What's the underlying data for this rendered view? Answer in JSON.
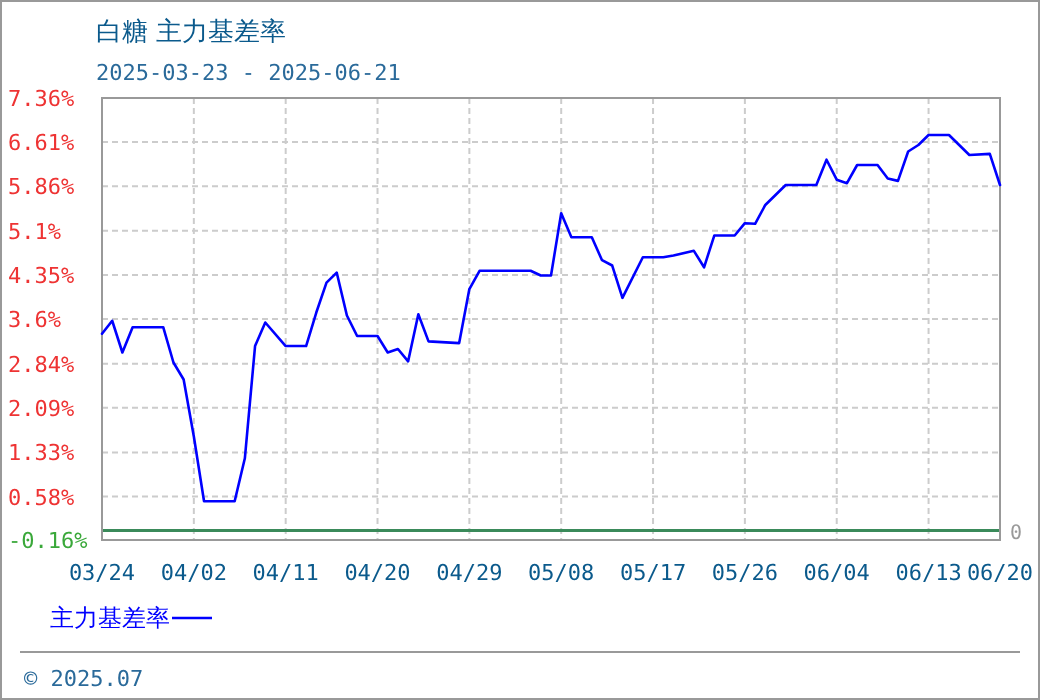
{
  "chart_data": {
    "type": "line",
    "title": "白糖 主力基差率",
    "subtitle": "2025-03-23 - 2025-06-21",
    "x": [
      "2025-03-24",
      "2025-03-25",
      "2025-03-26",
      "2025-03-27",
      "2025-03-30",
      "2025-03-31",
      "2025-04-01",
      "2025-04-02",
      "2025-04-03",
      "2025-04-06",
      "2025-04-07",
      "2025-04-08",
      "2025-04-09",
      "2025-04-11",
      "2025-04-13",
      "2025-04-14",
      "2025-04-15",
      "2025-04-16",
      "2025-04-17",
      "2025-04-18",
      "2025-04-20",
      "2025-04-21",
      "2025-04-22",
      "2025-04-23",
      "2025-04-24",
      "2025-04-25",
      "2025-04-28",
      "2025-04-29",
      "2025-04-30",
      "2025-05-05",
      "2025-05-06",
      "2025-05-07",
      "2025-05-08",
      "2025-05-09",
      "2025-05-11",
      "2025-05-12",
      "2025-05-13",
      "2025-05-14",
      "2025-05-16",
      "2025-05-18",
      "2025-05-19",
      "2025-05-21",
      "2025-05-22",
      "2025-05-23",
      "2025-05-25",
      "2025-05-26",
      "2025-05-27",
      "2025-05-28",
      "2025-05-30",
      "2025-06-02",
      "2025-06-03",
      "2025-06-04",
      "2025-06-05",
      "2025-06-06",
      "2025-06-08",
      "2025-06-09",
      "2025-06-10",
      "2025-06-11",
      "2025-06-12",
      "2025-06-13",
      "2025-06-15",
      "2025-06-17",
      "2025-06-19",
      "2025-06-20"
    ],
    "series": [
      {
        "name": "主力基差率",
        "color": "#0000ff",
        "values": [
          3.35,
          3.57,
          3.03,
          3.46,
          3.46,
          2.86,
          2.57,
          1.6,
          0.5,
          0.5,
          1.23,
          3.14,
          3.54,
          3.14,
          3.14,
          3.71,
          4.22,
          4.39,
          3.66,
          3.31,
          3.31,
          3.03,
          3.09,
          2.88,
          3.68,
          3.22,
          3.19,
          4.11,
          4.42,
          4.42,
          4.34,
          4.34,
          5.4,
          4.99,
          4.99,
          4.6,
          4.51,
          3.96,
          4.65,
          4.65,
          4.68,
          4.76,
          4.48,
          5.02,
          5.02,
          5.23,
          5.22,
          5.54,
          5.88,
          5.88,
          6.31,
          5.97,
          5.91,
          6.22,
          6.22,
          5.99,
          5.95,
          6.45,
          6.56,
          6.73,
          6.73,
          6.39,
          6.41,
          5.88
        ]
      }
    ],
    "xlim": [
      "2025-03-24",
      "2025-06-20"
    ],
    "xticks": [
      {
        "value": "2025-03-24",
        "label": "03/24"
      },
      {
        "value": "2025-04-02",
        "label": "04/02"
      },
      {
        "value": "2025-04-11",
        "label": "04/11"
      },
      {
        "value": "2025-04-20",
        "label": "04/20"
      },
      {
        "value": "2025-04-29",
        "label": "04/29"
      },
      {
        "value": "2025-05-08",
        "label": "05/08"
      },
      {
        "value": "2025-05-17",
        "label": "05/17"
      },
      {
        "value": "2025-05-26",
        "label": "05/26"
      },
      {
        "value": "2025-06-04",
        "label": "06/04"
      },
      {
        "value": "2025-06-13",
        "label": "06/13"
      },
      {
        "value": "2025-06-20",
        "label": "06/20"
      }
    ],
    "ylim": [
      -0.16,
      7.36
    ],
    "yticks": [
      {
        "value": -0.16,
        "label": "-0.16%"
      },
      {
        "value": 0.58,
        "label": "0.58%"
      },
      {
        "value": 1.33,
        "label": "1.33%"
      },
      {
        "value": 2.09,
        "label": "2.09%"
      },
      {
        "value": 2.84,
        "label": "2.84%"
      },
      {
        "value": 3.6,
        "label": "3.6%"
      },
      {
        "value": 4.35,
        "label": "4.35%"
      },
      {
        "value": 5.1,
        "label": "5.1%"
      },
      {
        "value": 5.86,
        "label": "5.86%"
      },
      {
        "value": 6.61,
        "label": "6.61%"
      },
      {
        "value": 7.36,
        "label": "7.36%"
      }
    ],
    "ref_lines": [
      {
        "axis": "y",
        "value": 0,
        "label": "0",
        "color": "#3a8a5a"
      }
    ],
    "annotations": [
      "© 2025.07"
    ],
    "grid": true,
    "legend": "bottom"
  }
}
